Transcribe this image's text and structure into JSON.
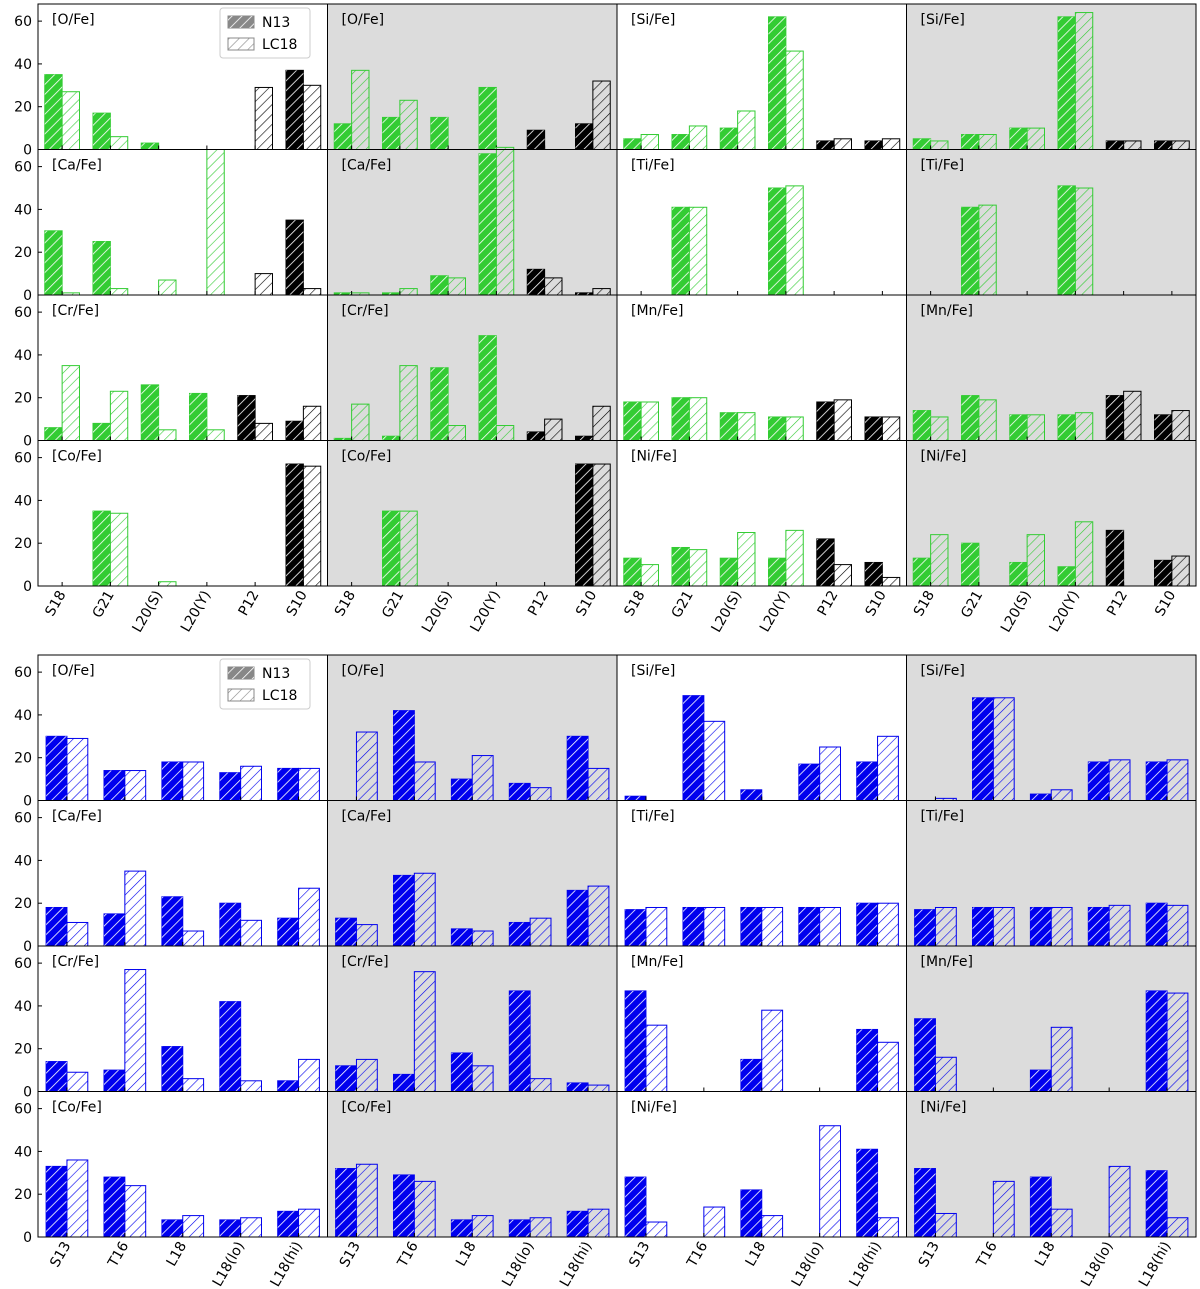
{
  "colors": {
    "green": "#33cc33",
    "blue": "#0000ee",
    "black": "#000000",
    "gray_panel": "#dcdcdc",
    "legend_gray": "#888888"
  },
  "legend": {
    "filled_label": "N13",
    "hatched_label": "LC18"
  },
  "chart_data": [
    {
      "type": "bar",
      "block": "top",
      "categories": [
        "S18",
        "G21",
        "L20(S)",
        "L20(Y)",
        "P12",
        "S10"
      ],
      "category_colors": [
        "green",
        "green",
        "green",
        "green",
        "black",
        "black"
      ],
      "ylim": [
        0,
        68
      ],
      "yticks": [
        0,
        20,
        40,
        60
      ],
      "series_names": [
        "N13",
        "LC18"
      ],
      "columns_shaded": [
        false,
        true,
        false,
        true
      ],
      "panels": [
        [
          {
            "label": "[O/Fe]",
            "n13": [
              35,
              17,
              3,
              0,
              0,
              37
            ],
            "lc18": [
              27,
              6,
              0,
              0,
              29,
              30
            ]
          },
          {
            "label": "[O/Fe]",
            "n13": [
              12,
              15,
              15,
              29,
              9,
              12
            ],
            "lc18": [
              37,
              23,
              0,
              0,
              0,
              32
            ]
          },
          {
            "label": "[Si/Fe]",
            "n13": [
              5,
              7,
              10,
              62,
              4,
              4
            ],
            "lc18": [
              7,
              11,
              18,
              46,
              5,
              5
            ]
          },
          {
            "label": "[Si/Fe]",
            "n13": [
              5,
              7,
              10,
              62,
              4,
              4
            ],
            "lc18": [
              4,
              7,
              10,
              64,
              4,
              4
            ]
          }
        ],
        [
          {
            "label": "[Ca/Fe]",
            "n13": [
              30,
              25,
              0,
              0,
              0,
              35
            ],
            "lc18": [
              1,
              3,
              7,
              68,
              10,
              3
            ]
          },
          {
            "label": "[Ca/Fe]",
            "n13": [
              1,
              1,
              9,
              66,
              12,
              1
            ],
            "lc18": [
              1,
              3,
              8,
              69,
              8,
              3
            ]
          },
          {
            "label": "[Ti/Fe]",
            "n13": [
              0,
              41,
              0,
              50,
              0,
              0
            ],
            "lc18": [
              0,
              41,
              0,
              51,
              0,
              0
            ]
          },
          {
            "label": "[Ti/Fe]",
            "n13": [
              0,
              41,
              0,
              51,
              0,
              0
            ],
            "lc18": [
              0,
              42,
              0,
              50,
              0,
              0
            ]
          }
        ],
        [
          {
            "label": "[Cr/Fe]",
            "n13": [
              6,
              8,
              26,
              22,
              21,
              9
            ],
            "lc18": [
              35,
              23,
              5,
              5,
              8,
              16
            ]
          },
          {
            "label": "[Cr/Fe]",
            "n13": [
              1,
              2,
              34,
              49,
              4,
              2
            ],
            "lc18": [
              17,
              35,
              7,
              7,
              10,
              16
            ]
          },
          {
            "label": "[Mn/Fe]",
            "n13": [
              18,
              20,
              13,
              11,
              18,
              11
            ],
            "lc18": [
              18,
              20,
              13,
              11,
              19,
              11
            ]
          },
          {
            "label": "[Mn/Fe]",
            "n13": [
              14,
              21,
              12,
              12,
              21,
              12
            ],
            "lc18": [
              11,
              19,
              12,
              13,
              23,
              14
            ]
          }
        ],
        [
          {
            "label": "[Co/Fe]",
            "n13": [
              0,
              35,
              0,
              0,
              0,
              57
            ],
            "lc18": [
              0,
              34,
              2,
              0,
              0,
              56
            ]
          },
          {
            "label": "[Co/Fe]",
            "n13": [
              0,
              35,
              0,
              0,
              0,
              57
            ],
            "lc18": [
              0,
              35,
              0,
              0,
              0,
              57
            ]
          },
          {
            "label": "[Ni/Fe]",
            "n13": [
              13,
              18,
              13,
              13,
              22,
              11
            ],
            "lc18": [
              10,
              17,
              25,
              26,
              10,
              4
            ]
          },
          {
            "label": "[Ni/Fe]",
            "n13": [
              13,
              20,
              11,
              9,
              26,
              12
            ],
            "lc18": [
              24,
              0,
              24,
              30,
              0,
              14
            ]
          }
        ]
      ]
    },
    {
      "type": "bar",
      "block": "bottom",
      "categories": [
        "S13",
        "T16",
        "L18",
        "L18(lo)",
        "L18(hi)"
      ],
      "category_colors": [
        "blue",
        "blue",
        "blue",
        "blue",
        "blue"
      ],
      "ylim": [
        0,
        68
      ],
      "yticks": [
        0,
        20,
        40,
        60
      ],
      "series_names": [
        "N13",
        "LC18"
      ],
      "columns_shaded": [
        false,
        true,
        false,
        true
      ],
      "panels": [
        [
          {
            "label": "[O/Fe]",
            "n13": [
              30,
              14,
              18,
              13,
              15
            ],
            "lc18": [
              29,
              14,
              18,
              16,
              15
            ]
          },
          {
            "label": "[O/Fe]",
            "n13": [
              0,
              42,
              10,
              8,
              30
            ],
            "lc18": [
              32,
              18,
              21,
              6,
              15
            ]
          },
          {
            "label": "[Si/Fe]",
            "n13": [
              2,
              49,
              5,
              17,
              18
            ],
            "lc18": [
              0,
              37,
              0,
              25,
              30
            ]
          },
          {
            "label": "[Si/Fe]",
            "n13": [
              0,
              48,
              3,
              18,
              18
            ],
            "lc18": [
              1,
              48,
              5,
              19,
              19
            ]
          }
        ],
        [
          {
            "label": "[Ca/Fe]",
            "n13": [
              18,
              15,
              23,
              20,
              13
            ],
            "lc18": [
              11,
              35,
              7,
              12,
              27
            ]
          },
          {
            "label": "[Ca/Fe]",
            "n13": [
              13,
              33,
              8,
              11,
              26
            ],
            "lc18": [
              10,
              34,
              7,
              13,
              28
            ]
          },
          {
            "label": "[Ti/Fe]",
            "n13": [
              17,
              18,
              18,
              18,
              20
            ],
            "lc18": [
              18,
              18,
              18,
              18,
              20
            ]
          },
          {
            "label": "[Ti/Fe]",
            "n13": [
              17,
              18,
              18,
              18,
              20
            ],
            "lc18": [
              18,
              18,
              18,
              19,
              19
            ]
          }
        ],
        [
          {
            "label": "[Cr/Fe]",
            "n13": [
              14,
              10,
              21,
              42,
              5
            ],
            "lc18": [
              9,
              57,
              6,
              5,
              15
            ]
          },
          {
            "label": "[Cr/Fe]",
            "n13": [
              12,
              8,
              18,
              47,
              4
            ],
            "lc18": [
              15,
              56,
              12,
              6,
              3
            ]
          },
          {
            "label": "[Mn/Fe]",
            "n13": [
              47,
              0,
              15,
              0,
              29
            ],
            "lc18": [
              31,
              0,
              38,
              0,
              23
            ]
          },
          {
            "label": "[Mn/Fe]",
            "n13": [
              34,
              0,
              10,
              0,
              47
            ],
            "lc18": [
              16,
              0,
              30,
              0,
              46
            ]
          }
        ],
        [
          {
            "label": "[Co/Fe]",
            "n13": [
              33,
              28,
              8,
              8,
              12
            ],
            "lc18": [
              36,
              24,
              10,
              9,
              13
            ]
          },
          {
            "label": "[Co/Fe]",
            "n13": [
              32,
              29,
              8,
              8,
              12
            ],
            "lc18": [
              34,
              26,
              10,
              9,
              13
            ]
          },
          {
            "label": "[Ni/Fe]",
            "n13": [
              28,
              0,
              22,
              0,
              41
            ],
            "lc18": [
              7,
              14,
              10,
              52,
              9
            ]
          },
          {
            "label": "[Ni/Fe]",
            "n13": [
              32,
              0,
              28,
              0,
              31
            ],
            "lc18": [
              11,
              26,
              13,
              33,
              9
            ]
          }
        ]
      ]
    }
  ]
}
